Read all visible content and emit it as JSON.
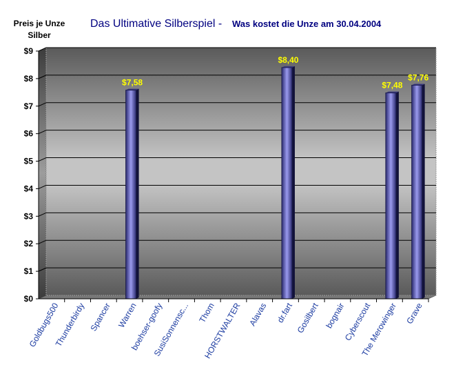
{
  "chart_data": {
    "type": "bar",
    "title": "Das Ultimative Silberspiel - ",
    "subtitle": "Was kostet die Unze am 30.04.2004",
    "ylabel_line1": "Preis je Unze",
    "ylabel_line2": "Silber",
    "xlabel": "",
    "ylim": [
      0,
      9
    ],
    "yticks": [
      "$0",
      "$1",
      "$2",
      "$3",
      "$4",
      "$5",
      "$6",
      "$7",
      "$8",
      "$9"
    ],
    "categories": [
      "Goldbugs500",
      "Thunderbirdy",
      "Spancer",
      "Warren",
      "boehser-goofy",
      "SusiSonnensc...",
      "Thom",
      "HORSTWALTER",
      "Alavas",
      "dr.fart",
      "Gosilbert",
      "bognair",
      "Cyberscout",
      "The Merowinger",
      "Grave"
    ],
    "values": [
      null,
      null,
      null,
      7.58,
      null,
      null,
      null,
      null,
      null,
      8.4,
      null,
      null,
      null,
      7.48,
      7.76
    ],
    "data_labels": [
      "",
      "",
      "",
      "$7,58",
      "",
      "",
      "",
      "",
      "",
      "$8,40",
      "",
      "",
      "",
      "$7,48",
      "$7,76"
    ],
    "grid": true,
    "legend": "none",
    "colors": {
      "bar_front": "#8f8fe6",
      "bar_edge": "#1e1e50",
      "data_label": "#ffff00",
      "title": "#000080",
      "tick_label": "#1a3aa0"
    }
  }
}
